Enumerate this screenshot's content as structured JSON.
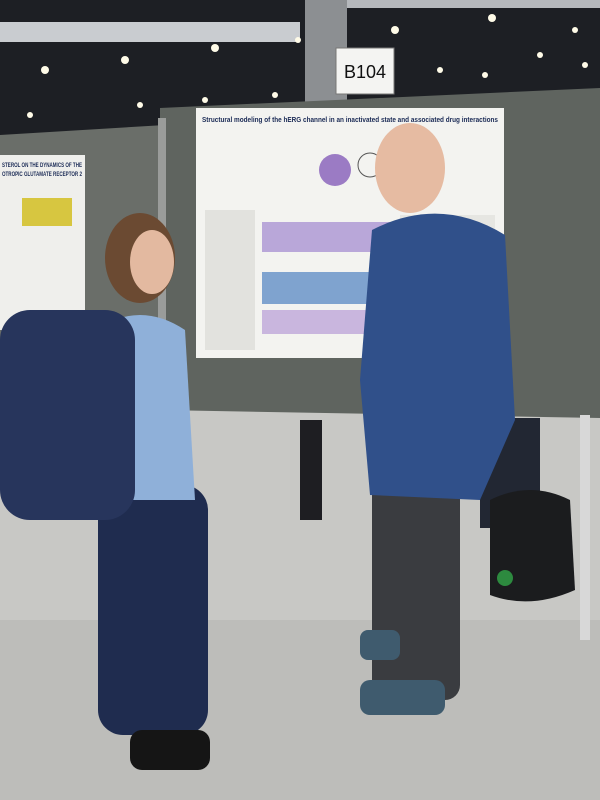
{
  "sign": {
    "label": "B104"
  },
  "main_poster": {
    "title": "Structural modeling of the hERG channel in an inactivated state and associated drug interactions"
  },
  "left_poster": {
    "title_lines": [
      "STEROL ON THE DYNAMICS OF THE",
      "OTROPIC GLUTAMATE RECEPTOR 2"
    ]
  }
}
